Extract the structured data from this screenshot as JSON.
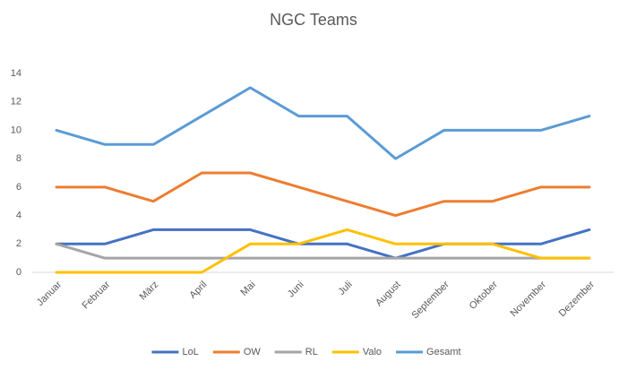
{
  "chart_data": {
    "type": "line",
    "title": "NGC Teams",
    "categories": [
      "Januar",
      "Februar",
      "März",
      "April",
      "Mai",
      "Juni",
      "Juli",
      "August",
      "September",
      "Oktober",
      "November",
      "Dezember"
    ],
    "series": [
      {
        "name": "LoL",
        "color": "#4472c4",
        "values": [
          2,
          2,
          3,
          3,
          3,
          2,
          2,
          1,
          2,
          2,
          2,
          3
        ]
      },
      {
        "name": "OW",
        "color": "#ed7d31",
        "values": [
          6,
          6,
          5,
          7,
          7,
          6,
          5,
          4,
          5,
          5,
          6,
          6
        ]
      },
      {
        "name": "RL",
        "color": "#a5a5a5",
        "values": [
          2,
          1,
          1,
          1,
          1,
          1,
          1,
          1,
          1,
          1,
          1,
          1
        ]
      },
      {
        "name": "Valo",
        "color": "#ffc000",
        "values": [
          0,
          0,
          0,
          0,
          2,
          2,
          3,
          2,
          2,
          2,
          1,
          1
        ]
      },
      {
        "name": "Gesamt",
        "color": "#5b9bd5",
        "values": [
          10,
          9,
          9,
          11,
          13,
          11,
          11,
          8,
          10,
          10,
          10,
          11
        ]
      }
    ],
    "ylim": [
      0,
      14
    ],
    "yticks": [
      0,
      2,
      4,
      6,
      8,
      10,
      12,
      14
    ],
    "grid": false,
    "legend": "bottom"
  }
}
